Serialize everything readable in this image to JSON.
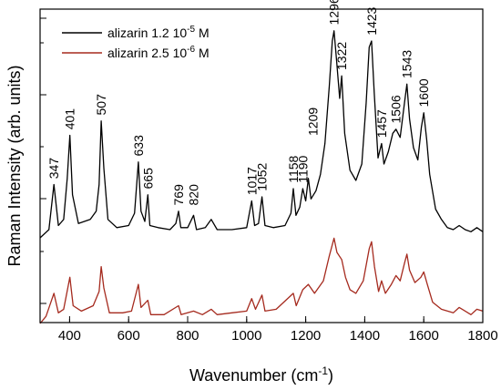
{
  "chart_data": {
    "type": "line",
    "xlabel": "Wavenumber (cm",
    "xlabel_sup": "-1",
    "xlabel_end": ")",
    "ylabel": "Raman Intensity (arb. units)",
    "xlim": [
      300,
      1800
    ],
    "x_ticks": [
      400,
      600,
      800,
      1000,
      1200,
      1400,
      1600,
      1800
    ],
    "y_ticks": "unlabeled",
    "legend_position": "top-left",
    "series": [
      {
        "name_prefix": "alizarin 1.2 10",
        "name_exp": "-5",
        "name_suffix": " M",
        "color": "#000000",
        "points": [
          [
            300,
            0.04
          ],
          [
            330,
            0.08
          ],
          [
            347,
            0.3
          ],
          [
            362,
            0.1
          ],
          [
            380,
            0.13
          ],
          [
            392,
            0.33
          ],
          [
            401,
            0.54
          ],
          [
            410,
            0.25
          ],
          [
            430,
            0.11
          ],
          [
            470,
            0.13
          ],
          [
            490,
            0.17
          ],
          [
            500,
            0.3
          ],
          [
            507,
            0.61
          ],
          [
            516,
            0.38
          ],
          [
            530,
            0.13
          ],
          [
            560,
            0.09
          ],
          [
            600,
            0.1
          ],
          [
            620,
            0.16
          ],
          [
            633,
            0.41
          ],
          [
            642,
            0.17
          ],
          [
            655,
            0.12
          ],
          [
            665,
            0.25
          ],
          [
            672,
            0.1
          ],
          [
            700,
            0.09
          ],
          [
            740,
            0.08
          ],
          [
            760,
            0.11
          ],
          [
            769,
            0.17
          ],
          [
            777,
            0.09
          ],
          [
            800,
            0.09
          ],
          [
            820,
            0.15
          ],
          [
            830,
            0.08
          ],
          [
            860,
            0.09
          ],
          [
            880,
            0.13
          ],
          [
            900,
            0.08
          ],
          [
            950,
            0.08
          ],
          [
            1000,
            0.09
          ],
          [
            1017,
            0.22
          ],
          [
            1027,
            0.1
          ],
          [
            1040,
            0.11
          ],
          [
            1052,
            0.24
          ],
          [
            1062,
            0.1
          ],
          [
            1090,
            0.09
          ],
          [
            1130,
            0.1
          ],
          [
            1150,
            0.16
          ],
          [
            1158,
            0.28
          ],
          [
            1167,
            0.15
          ],
          [
            1180,
            0.19
          ],
          [
            1190,
            0.28
          ],
          [
            1200,
            0.22
          ],
          [
            1209,
            0.33
          ],
          [
            1218,
            0.23
          ],
          [
            1235,
            0.27
          ],
          [
            1250,
            0.35
          ],
          [
            1265,
            0.5
          ],
          [
            1280,
            0.78
          ],
          [
            1290,
            1.0
          ],
          [
            1296,
            1.05
          ],
          [
            1305,
            0.9
          ],
          [
            1315,
            0.72
          ],
          [
            1322,
            0.83
          ],
          [
            1332,
            0.55
          ],
          [
            1350,
            0.37
          ],
          [
            1370,
            0.32
          ],
          [
            1390,
            0.4
          ],
          [
            1405,
            0.7
          ],
          [
            1415,
            0.97
          ],
          [
            1423,
            1.0
          ],
          [
            1432,
            0.75
          ],
          [
            1445,
            0.43
          ],
          [
            1457,
            0.5
          ],
          [
            1465,
            0.4
          ],
          [
            1480,
            0.46
          ],
          [
            1495,
            0.55
          ],
          [
            1506,
            0.57
          ],
          [
            1520,
            0.53
          ],
          [
            1535,
            0.7
          ],
          [
            1543,
            0.79
          ],
          [
            1552,
            0.62
          ],
          [
            1565,
            0.48
          ],
          [
            1580,
            0.42
          ],
          [
            1592,
            0.58
          ],
          [
            1600,
            0.65
          ],
          [
            1610,
            0.52
          ],
          [
            1620,
            0.35
          ],
          [
            1640,
            0.18
          ],
          [
            1660,
            0.13
          ],
          [
            1680,
            0.09
          ],
          [
            1700,
            0.08
          ],
          [
            1720,
            0.1
          ],
          [
            1740,
            0.08
          ],
          [
            1760,
            0.07
          ],
          [
            1780,
            0.09
          ],
          [
            1800,
            0.07
          ]
        ]
      },
      {
        "name_prefix": "alizarin 2.5 10",
        "name_exp": "-6",
        "name_suffix": " M",
        "color": "#a52a1e",
        "points": [
          [
            300,
            0.0
          ],
          [
            320,
            0.04
          ],
          [
            347,
            0.17
          ],
          [
            362,
            0.06
          ],
          [
            380,
            0.08
          ],
          [
            401,
            0.26
          ],
          [
            412,
            0.1
          ],
          [
            440,
            0.07
          ],
          [
            480,
            0.1
          ],
          [
            500,
            0.18
          ],
          [
            507,
            0.32
          ],
          [
            516,
            0.2
          ],
          [
            535,
            0.06
          ],
          [
            580,
            0.06
          ],
          [
            610,
            0.07
          ],
          [
            633,
            0.22
          ],
          [
            642,
            0.09
          ],
          [
            665,
            0.13
          ],
          [
            675,
            0.05
          ],
          [
            720,
            0.05
          ],
          [
            769,
            0.1
          ],
          [
            778,
            0.05
          ],
          [
            820,
            0.07
          ],
          [
            850,
            0.05
          ],
          [
            880,
            0.08
          ],
          [
            900,
            0.05
          ],
          [
            950,
            0.06
          ],
          [
            1000,
            0.07
          ],
          [
            1017,
            0.14
          ],
          [
            1030,
            0.08
          ],
          [
            1052,
            0.16
          ],
          [
            1062,
            0.07
          ],
          [
            1100,
            0.08
          ],
          [
            1158,
            0.17
          ],
          [
            1168,
            0.1
          ],
          [
            1190,
            0.19
          ],
          [
            1209,
            0.22
          ],
          [
            1230,
            0.17
          ],
          [
            1260,
            0.24
          ],
          [
            1280,
            0.38
          ],
          [
            1296,
            0.48
          ],
          [
            1306,
            0.4
          ],
          [
            1322,
            0.36
          ],
          [
            1335,
            0.26
          ],
          [
            1350,
            0.19
          ],
          [
            1370,
            0.17
          ],
          [
            1395,
            0.24
          ],
          [
            1415,
            0.42
          ],
          [
            1423,
            0.46
          ],
          [
            1433,
            0.32
          ],
          [
            1447,
            0.18
          ],
          [
            1457,
            0.24
          ],
          [
            1470,
            0.17
          ],
          [
            1490,
            0.22
          ],
          [
            1506,
            0.27
          ],
          [
            1520,
            0.24
          ],
          [
            1535,
            0.34
          ],
          [
            1543,
            0.39
          ],
          [
            1552,
            0.3
          ],
          [
            1570,
            0.23
          ],
          [
            1590,
            0.26
          ],
          [
            1600,
            0.29
          ],
          [
            1612,
            0.22
          ],
          [
            1630,
            0.12
          ],
          [
            1660,
            0.08
          ],
          [
            1700,
            0.06
          ],
          [
            1720,
            0.09
          ],
          [
            1760,
            0.05
          ],
          [
            1780,
            0.08
          ],
          [
            1800,
            0.07
          ]
        ]
      }
    ],
    "peak_labels": [
      {
        "text": "347",
        "x": 347,
        "y": 0.31
      },
      {
        "text": "401",
        "x": 401,
        "y": 0.55
      },
      {
        "text": "507",
        "x": 507,
        "y": 0.62
      },
      {
        "text": "633",
        "x": 633,
        "y": 0.42
      },
      {
        "text": "665",
        "x": 665,
        "y": 0.26
      },
      {
        "text": "769",
        "x": 769,
        "y": 0.18
      },
      {
        "text": "820",
        "x": 820,
        "y": 0.18
      },
      {
        "text": "1017",
        "x": 1017,
        "y": 0.23
      },
      {
        "text": "1052",
        "x": 1052,
        "y": 0.25
      },
      {
        "text": "1158",
        "x": 1158,
        "y": 0.29
      },
      {
        "text": "1190",
        "x": 1190,
        "y": 0.29
      },
      {
        "text": "1209",
        "x": 1225,
        "y": 0.52
      },
      {
        "text": "1296",
        "x": 1296,
        "y": 1.06
      },
      {
        "text": "1322",
        "x": 1322,
        "y": 0.84
      },
      {
        "text": "1423",
        "x": 1423,
        "y": 1.01
      },
      {
        "text": "1457",
        "x": 1457,
        "y": 0.51
      },
      {
        "text": "1506",
        "x": 1506,
        "y": 0.58
      },
      {
        "text": "1543",
        "x": 1543,
        "y": 0.8
      },
      {
        "text": "1600",
        "x": 1600,
        "y": 0.66
      }
    ]
  }
}
